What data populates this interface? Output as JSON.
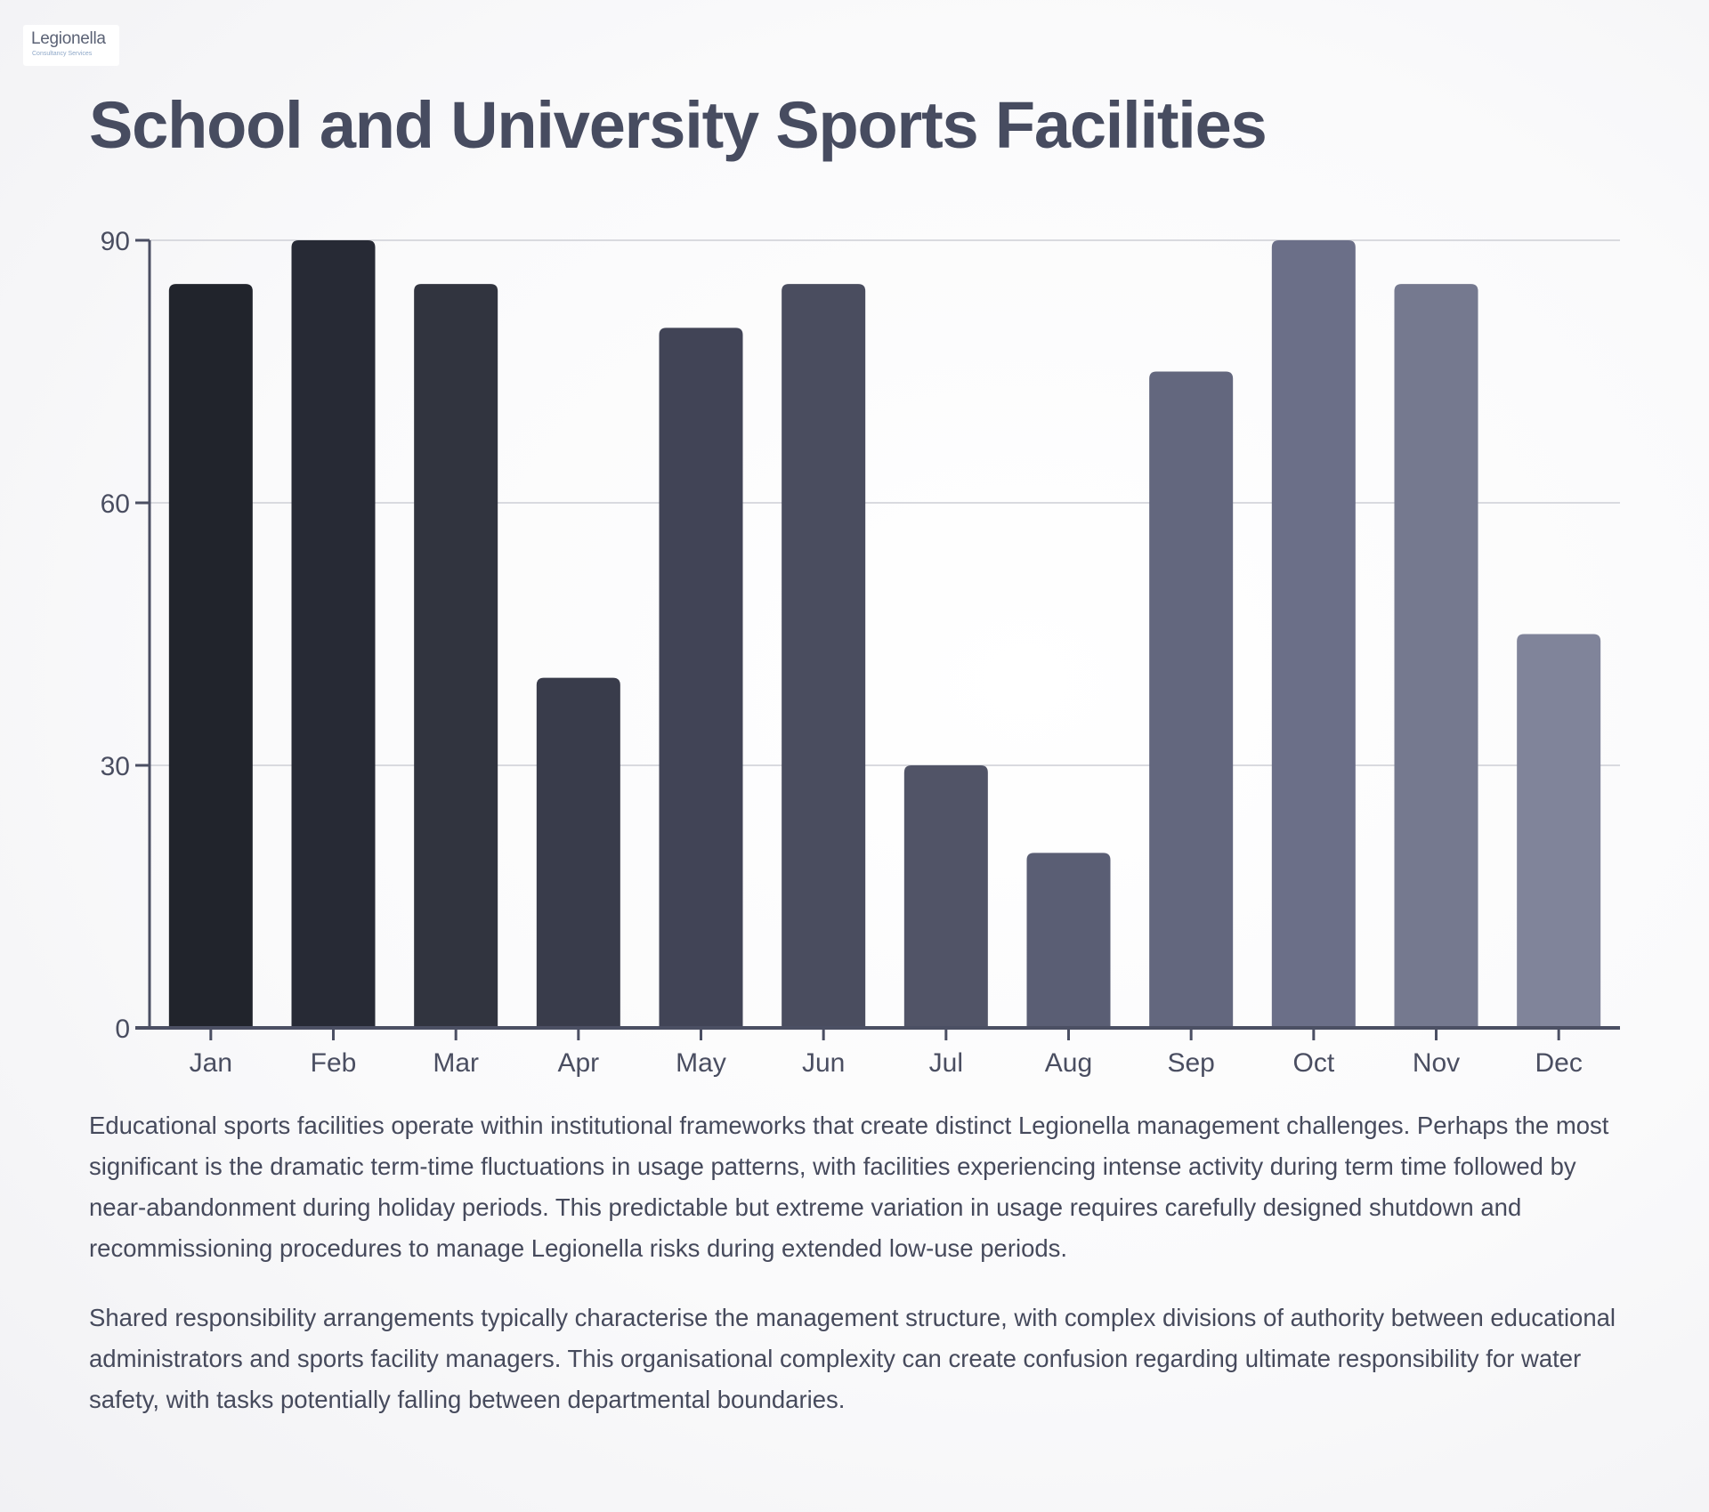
{
  "logo": {
    "name": "Legionella",
    "tagline": "Consultancy Services"
  },
  "page": {
    "title": "School and University Sports Facilities"
  },
  "chart_data": {
    "type": "bar",
    "title": "School and University Sports Facilities",
    "xlabel": "",
    "ylabel": "",
    "categories": [
      "Jan",
      "Feb",
      "Mar",
      "Apr",
      "May",
      "Jun",
      "Jul",
      "Aug",
      "Sep",
      "Oct",
      "Nov",
      "Dec"
    ],
    "values": [
      85,
      90,
      85,
      40,
      80,
      85,
      30,
      20,
      75,
      90,
      85,
      45
    ],
    "ylim": [
      0,
      90
    ],
    "yticks": [
      0,
      30,
      60,
      90
    ],
    "grid": true,
    "legend": "none",
    "bar_colors": [
      "#21242c",
      "#272a35",
      "#31343f",
      "#393c4b",
      "#414456",
      "#4a4d5f",
      "#515467",
      "#5a5e74",
      "#63677e",
      "#6b6f88",
      "#75798f",
      "#80849a"
    ],
    "axis_color": "#4b4f63",
    "grid_color": "#d9dadf"
  },
  "body": {
    "paragraphs": [
      "Educational sports facilities operate within institutional frameworks that create distinct Legionella management challenges. Perhaps the most significant is the dramatic term-time fluctuations in usage patterns, with facilities experiencing intense activity during term time followed by near-abandonment during holiday periods. This predictable but extreme variation in usage requires carefully designed shutdown and recommissioning procedures to manage Legionella risks during extended low-use periods.",
      "Shared responsibility arrangements typically characterise the management structure, with complex divisions of authority between educational administrators and sports facility managers. This organisational complexity can create confusion regarding ultimate responsibility for water safety, with tasks potentially falling between departmental boundaries."
    ]
  }
}
